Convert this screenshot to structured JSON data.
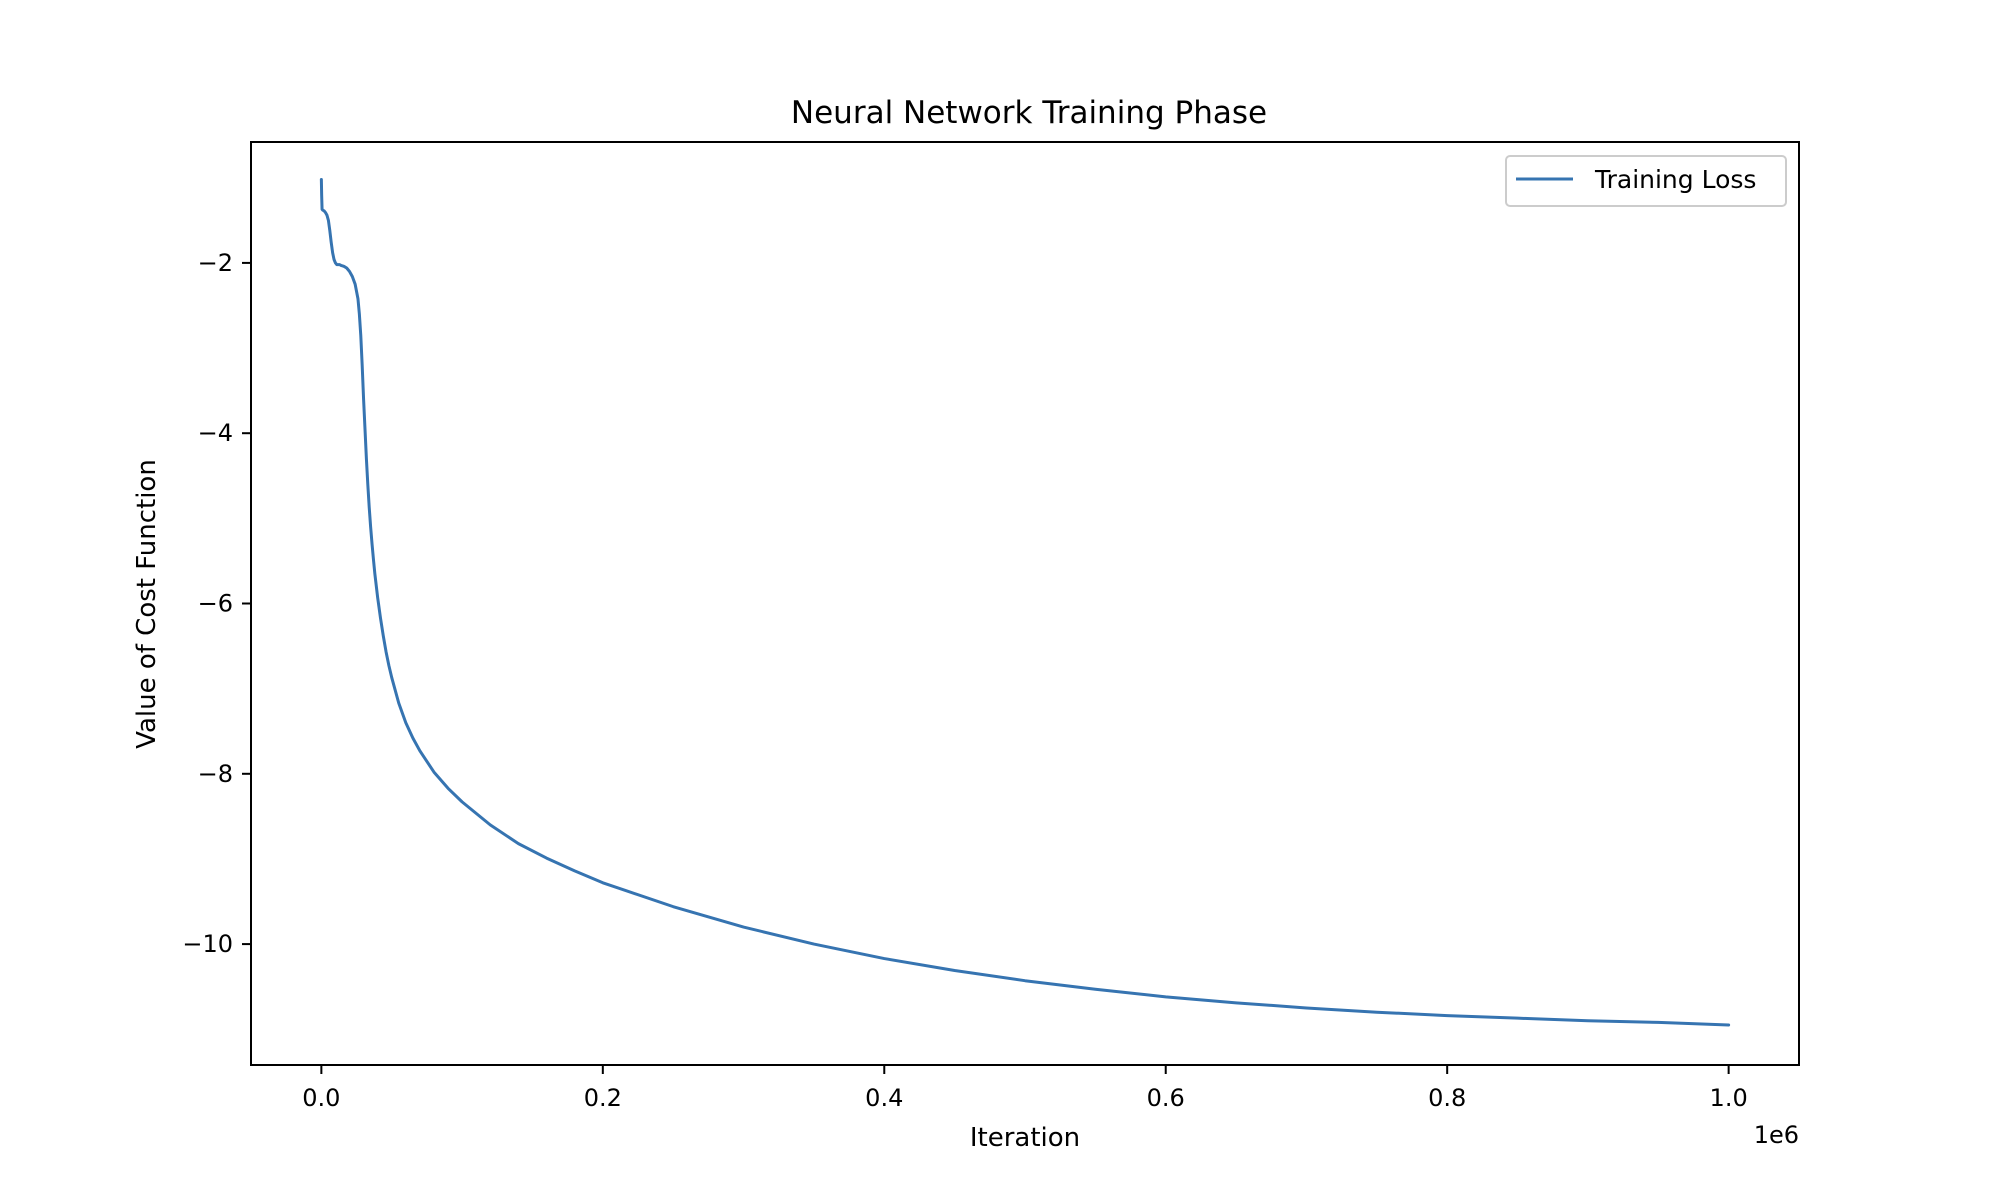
{
  "chart_data": {
    "type": "line",
    "title": "Neural Network Training Phase",
    "xlabel": "Iteration",
    "ylabel": "Value of Cost Function",
    "x_offset_text": "1e6",
    "xlim": [
      -50000,
      1050000
    ],
    "ylim": [
      -11.42,
      -0.58
    ],
    "x_ticks": [
      0,
      200000,
      400000,
      600000,
      800000,
      1000000
    ],
    "x_tick_labels": [
      "0.0",
      "0.2",
      "0.4",
      "0.6",
      "0.8",
      "1.0"
    ],
    "y_ticks": [
      -2,
      -4,
      -6,
      -8,
      -10
    ],
    "y_tick_labels": [
      "−2",
      "−4",
      "−6",
      "−8",
      "−10"
    ],
    "grid": false,
    "legend_position": "upper right",
    "series": [
      {
        "name": "Training Loss",
        "color": "#3674b1",
        "x": [
          0,
          200,
          500,
          1000,
          2000,
          3000,
          4000,
          5000,
          6000,
          7000,
          8000,
          9000,
          10000,
          11000,
          12000,
          13000,
          14000,
          16000,
          18000,
          20000,
          22000,
          24000,
          26000,
          27000,
          28000,
          29000,
          30000,
          31000,
          32000,
          33000,
          34000,
          35000,
          36000,
          37000,
          38000,
          40000,
          42000,
          44000,
          46000,
          48000,
          50000,
          55000,
          60000,
          65000,
          70000,
          80000,
          90000,
          100000,
          120000,
          140000,
          160000,
          180000,
          200000,
          250000,
          300000,
          350000,
          400000,
          450000,
          500000,
          550000,
          600000,
          650000,
          700000,
          750000,
          800000,
          850000,
          900000,
          950000,
          1000000
        ],
        "y": [
          -1.02,
          -1.2,
          -1.37,
          -1.38,
          -1.39,
          -1.41,
          -1.44,
          -1.5,
          -1.62,
          -1.76,
          -1.88,
          -1.96,
          -2.0,
          -2.02,
          -2.02,
          -2.02,
          -2.03,
          -2.04,
          -2.06,
          -2.1,
          -2.16,
          -2.25,
          -2.42,
          -2.6,
          -2.85,
          -3.2,
          -3.6,
          -3.95,
          -4.3,
          -4.6,
          -4.87,
          -5.1,
          -5.3,
          -5.48,
          -5.65,
          -5.93,
          -6.17,
          -6.38,
          -6.57,
          -6.73,
          -6.87,
          -7.17,
          -7.4,
          -7.58,
          -7.73,
          -7.98,
          -8.17,
          -8.33,
          -8.6,
          -8.82,
          -8.99,
          -9.14,
          -9.28,
          -9.56,
          -9.8,
          -10.0,
          -10.17,
          -10.31,
          -10.43,
          -10.53,
          -10.62,
          -10.69,
          -10.75,
          -10.8,
          -10.84,
          -10.87,
          -10.9,
          -10.92,
          -10.95
        ]
      }
    ]
  }
}
